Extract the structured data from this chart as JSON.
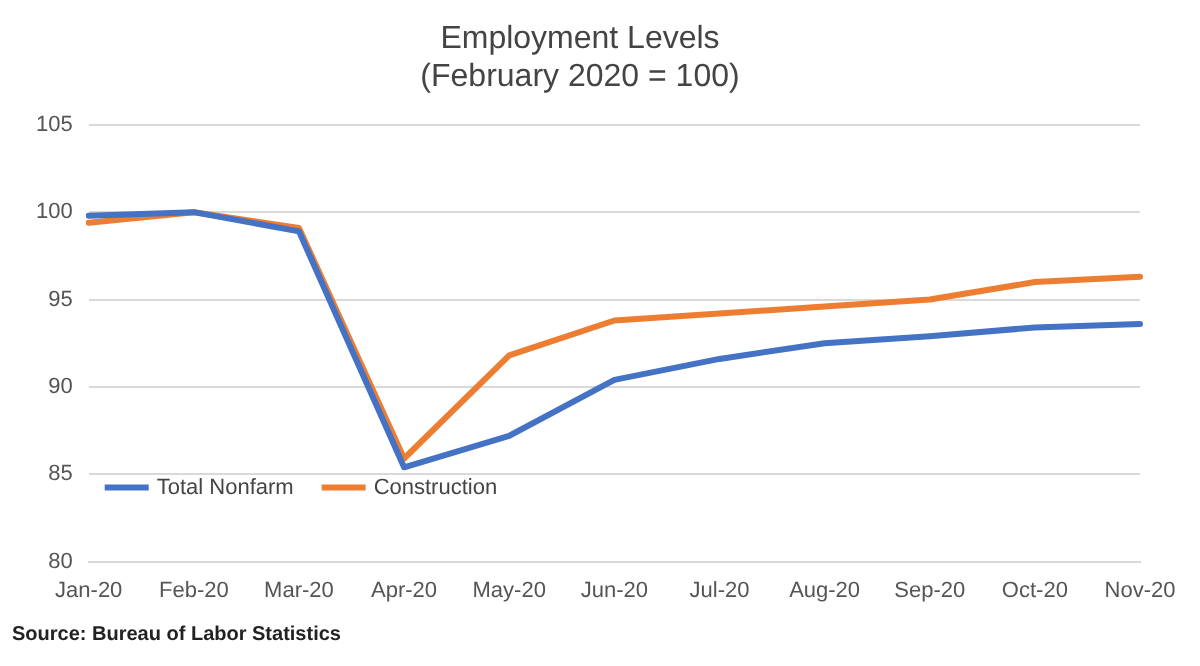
{
  "chart_data": {
    "type": "line",
    "title": [
      "Employment Levels",
      "(February 2020 = 100)"
    ],
    "categories": [
      "Jan-20",
      "Feb-20",
      "Mar-20",
      "Apr-20",
      "May-20",
      "Jun-20",
      "Jul-20",
      "Aug-20",
      "Sep-20",
      "Oct-20",
      "Nov-20"
    ],
    "series": [
      {
        "name": "Total Nonfarm",
        "color": "#4472c4",
        "values": [
          99.8,
          100,
          98.9,
          85.4,
          87.2,
          90.4,
          91.6,
          92.5,
          92.9,
          93.4,
          93.6
        ]
      },
      {
        "name": "Construction",
        "color": "#ed7d31",
        "values": [
          99.4,
          100,
          99.1,
          85.9,
          91.8,
          93.8,
          94.2,
          94.6,
          95.0,
          96.0,
          96.3
        ]
      }
    ],
    "ylim": [
      80,
      105
    ],
    "yticks": [
      80,
      85,
      90,
      95,
      100,
      105
    ],
    "grid": "y",
    "legend": "bottom left",
    "marker": "none",
    "line_style": "solid",
    "annotations": [
      "Source: Bureau of Labor Statistics"
    ]
  }
}
